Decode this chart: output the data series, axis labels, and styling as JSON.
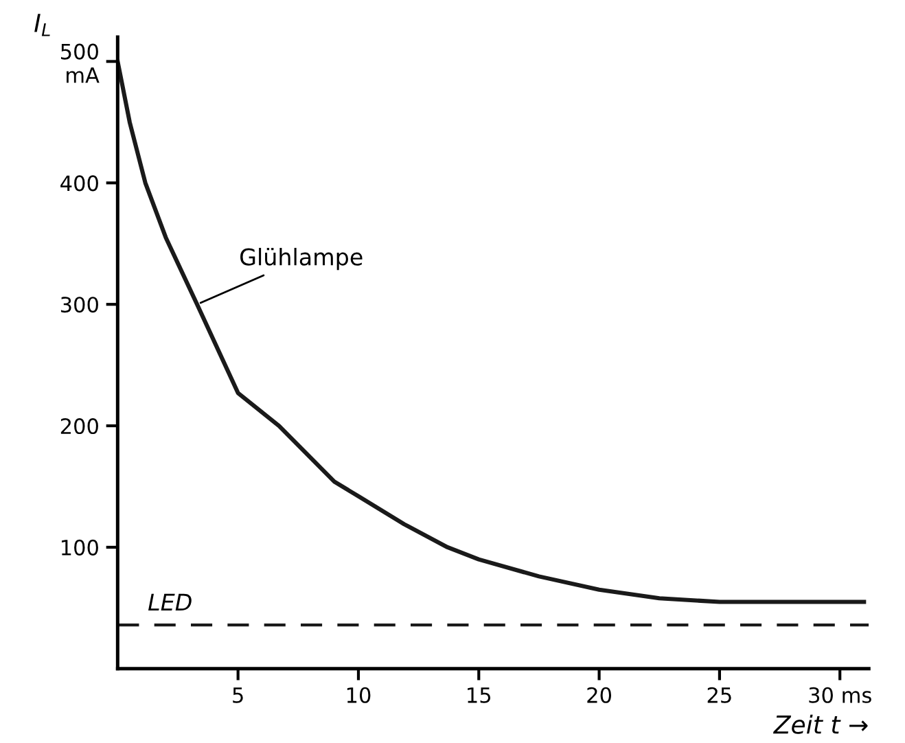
{
  "chart_data": {
    "type": "line",
    "xlabel": "Zeit t →",
    "ylabel": "I$_{L}$",
    "x": [
      0,
      0.5,
      1.15,
      2,
      3.3,
      5,
      6.7,
      9,
      10,
      11.9,
      13.7,
      15,
      17.5,
      20,
      22.5,
      25,
      28,
      31
    ],
    "series": [
      {
        "color": "#1a1a1a",
        "values": [
          500,
          450,
          400,
          355,
          300,
          227,
          200,
          154,
          142,
          119,
          100,
          90,
          76,
          65,
          58,
          55,
          55,
          55
        ]
      }
    ],
    "xlim": [
      0,
      31.2
    ],
    "ylim": [
      0,
      520
    ],
    "xticks": [
      5,
      10,
      15,
      20,
      25,
      {
        "value": 30,
        "label": "30 ms"
      }
    ],
    "yticks": [
      100,
      200,
      300,
      400,
      {
        "value": 500,
        "label": "500\nmA"
      }
    ],
    "ref_lines": [
      {
        "axis": "y",
        "value": 36,
        "label": "LED",
        "line_style": "dashed",
        "color": "#1a1a1a"
      }
    ],
    "annotations": [
      {
        "text": "Glühlampe",
        "x": 3.3,
        "y": 300
      }
    ],
    "grid": false,
    "legend": false,
    "line_style": "solid",
    "marker": "none"
  }
}
